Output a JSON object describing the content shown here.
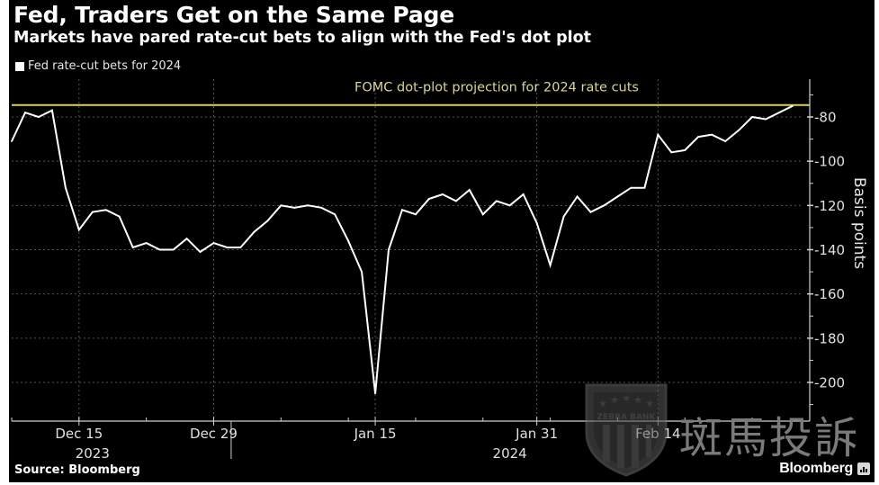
{
  "header": {
    "title": "Fed, Traders Get on the Same Page",
    "subtitle": "Markets have pared rate-cut bets to align with the Fed's dot plot"
  },
  "footer": {
    "source": "Source: Bloomberg",
    "brand": "Bloomberg"
  },
  "watermark": {
    "badge_text": "ZEBRA BANK",
    "text": "斑馬投訴"
  },
  "colors": {
    "background": "#000000",
    "series": "#ffffff",
    "reference_line": "#d9cf6a",
    "grid": "#555555",
    "axis": "#cfcfcf"
  },
  "chart_data": {
    "type": "line",
    "title": "Fed, Traders Get on the Same Page",
    "subtitle": "Markets have pared rate-cut bets to align with the Fed's dot plot",
    "xlabel": "",
    "ylabel": "Basis points",
    "legend": {
      "entries": [
        "Fed rate-cut bets for 2024"
      ],
      "placement": "top-left"
    },
    "ylim": [
      -210,
      -70
    ],
    "y_ticks": [
      -80,
      -100,
      -120,
      -140,
      -160,
      -180,
      -200
    ],
    "y_axis_side": "right",
    "grid": true,
    "x_index_range": [
      0,
      58
    ],
    "x_ticks": [
      {
        "index": 5,
        "label": "Dec 15",
        "year": "2023"
      },
      {
        "index": 15,
        "label": "Dec 29",
        "year": ""
      },
      {
        "index": 27,
        "label": "Jan 15",
        "year": ""
      },
      {
        "index": 39,
        "label": "Jan 31",
        "year": "2024"
      },
      {
        "index": 48,
        "label": "Feb 14",
        "year": ""
      }
    ],
    "reference_line": {
      "value": -75,
      "label": "FOMC dot-plot projection for 2024 rate cuts"
    },
    "series": [
      {
        "name": "Fed rate-cut bets for 2024",
        "values": [
          -91,
          -78,
          -80,
          -77,
          -112,
          -131,
          -123,
          -122,
          -125,
          -139,
          -137,
          -140,
          -140,
          -135,
          -141,
          -137,
          -139,
          -139,
          -132,
          -127,
          -120,
          -121,
          -120,
          -121,
          -124,
          -136,
          -150,
          -205,
          -140,
          -122,
          -124,
          -117,
          -115,
          -118,
          -113,
          -124,
          -118,
          -120,
          -115,
          -128,
          -147,
          -125,
          -116,
          -123,
          -120,
          -116,
          -112,
          -112,
          -88,
          -96,
          -95,
          -89,
          -88,
          -91,
          -86,
          -80,
          -81,
          -78,
          -75
        ]
      }
    ]
  }
}
